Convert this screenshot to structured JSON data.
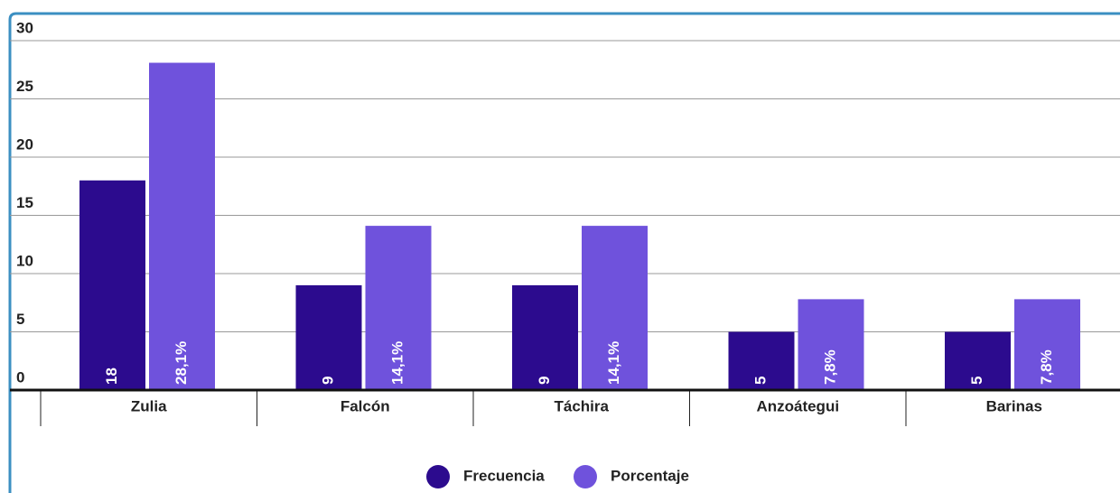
{
  "chart_data": {
    "type": "bar",
    "categories": [
      "Zulia",
      "Falcón",
      "Táchira",
      "Anzoátegui",
      "Barinas"
    ],
    "series": [
      {
        "name": "Frecuencia",
        "color": "#2c0b8e",
        "values": [
          18,
          9,
          9,
          5,
          5
        ]
      },
      {
        "name": "Porcentaje",
        "color": "#6f52dc",
        "values": [
          28.1,
          14.1,
          14.1,
          7.8,
          7.8
        ],
        "value_labels": [
          "28,1%",
          "14,1%",
          "14,1%",
          "7,8%",
          "7,8%"
        ]
      }
    ],
    "ylim": [
      0,
      30
    ],
    "yticks": [
      0,
      5,
      10,
      15,
      20,
      25,
      30
    ],
    "grid": true,
    "legend": "bottom"
  }
}
